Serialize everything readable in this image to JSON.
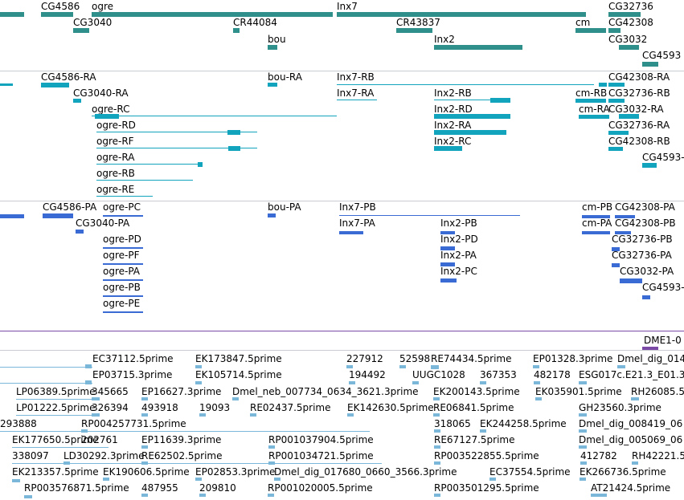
{
  "colors": {
    "gene": "#2f8f8a",
    "transcript_rna": "#12a3bd",
    "transcript_protein": "#3a6bd4",
    "est": "#7bb7d8",
    "divider": "#c9ccd0",
    "purple": "#7a4aa6"
  },
  "tracks": {
    "genes": {
      "labels": [
        "CG4586",
        "ogre",
        "Inx7",
        "CG32736",
        "CG3040",
        "CR44084",
        "CR43837",
        "cm",
        "CG42308",
        "bou",
        "Inx2",
        "CG3032",
        "CG4593"
      ]
    },
    "rna": {
      "labels": [
        "CG4586-RA",
        "bou-RA",
        "Inx7-RB",
        "CG42308-RA",
        "CG3040-RA",
        "Inx7-RA",
        "Inx2-RB",
        "cm-RB",
        "CG32736-RB",
        "ogre-RC",
        "Inx2-RD",
        "cm-RA",
        "CG3032-RA",
        "ogre-RD",
        "Inx2-RA",
        "CG32736-RA",
        "ogre-RF",
        "Inx2-RC",
        "CG42308-RB",
        "ogre-RA",
        "CG4593-",
        "ogre-RB",
        "ogre-RE"
      ]
    },
    "protein": {
      "labels": [
        "CG4586-PA",
        "ogre-PC",
        "bou-PA",
        "Inx7-PB",
        "cm-PB",
        "CG42308-PA",
        "CG3040-PA",
        "Inx7-PA",
        "Inx2-PB",
        "cm-PA",
        "CG42308-PB",
        "ogre-PD",
        "Inx2-PD",
        "CG32736-PB",
        "ogre-PF",
        "Inx2-PA",
        "CG32736-PA",
        "ogre-PA",
        "Inx2-PC",
        "CG3032-PA",
        "ogre-PB",
        "CG4593-",
        "ogre-PE"
      ]
    },
    "marker": {
      "labels": [
        "DME1-0"
      ]
    },
    "est": {
      "labels": [
        "EC37112.5prime",
        "EK173847.5prime",
        "227912",
        "52598",
        "RE74434.5prime",
        "EP01328.3prime",
        "Dmel_dig_014",
        "EP03715.3prime",
        "EK105714.5prime",
        "194492",
        "UUGC1028",
        "367353",
        "482178",
        "ESG017c.E21.3_E01.3",
        "LP06389.5prime",
        "345665",
        "EP16627.3prime",
        "Dmel_neb_007734_0634_3621.3prime",
        "EK200143.5prime",
        "EK035901.5prime",
        "RH26085.5",
        "LP01222.5prime",
        "326394",
        "493918",
        "19093",
        "RE02437.5prime",
        "EK142630.5prime",
        "RE06841.5prime",
        "GH23560.3prime",
        "293888",
        "RP004257731.5prime",
        "318065",
        "EK244258.5prime",
        "Dmel_dig_008419_06",
        "EK177650.5prime",
        "202761",
        "EP11639.3prime",
        "RP001037904.5prime",
        "RE67127.5prime",
        "Dmel_dig_005069_06",
        "338097",
        "LD30292.3prime",
        "RE62502.5prime",
        "RP001034721.5prime",
        "RP003522855.5prime",
        "412782",
        "RH42221.5",
        "EK213357.5prime",
        "EK190606.5prime",
        "EP02853.3prime",
        "Dmel_dig_017680_0660_3566.3prime",
        "EC37554.5prime",
        "EK266736.5prime",
        "RP003576871.5prime",
        "487955",
        "209810",
        "RP001020005.5prime",
        "RP003501295.5prime",
        "AT21424.5prime"
      ]
    }
  }
}
